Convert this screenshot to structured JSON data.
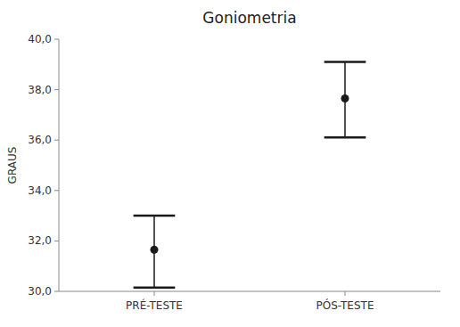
{
  "chart_data": {
    "type": "errorbar",
    "title": "Goniometria",
    "y_label": "GRAUS",
    "categories": [
      "PRÉ-TESTE",
      "PÓS-TESTE"
    ],
    "values": [
      31.65,
      37.65
    ],
    "ci_lower": [
      30.15,
      36.1
    ],
    "ci_upper": [
      33.0,
      39.1
    ],
    "color": "#1a1a1a",
    "ylim": [
      30.0,
      40.0
    ],
    "yticks": [
      {
        "value": 30.0,
        "label": "30,0"
      },
      {
        "value": 32.0,
        "label": "32,0"
      },
      {
        "value": 34.0,
        "label": "34,0"
      },
      {
        "value": 36.0,
        "label": "36,0"
      },
      {
        "value": 38.0,
        "label": "38,0"
      },
      {
        "value": 40.0,
        "label": "40,0"
      }
    ],
    "grid": false
  }
}
